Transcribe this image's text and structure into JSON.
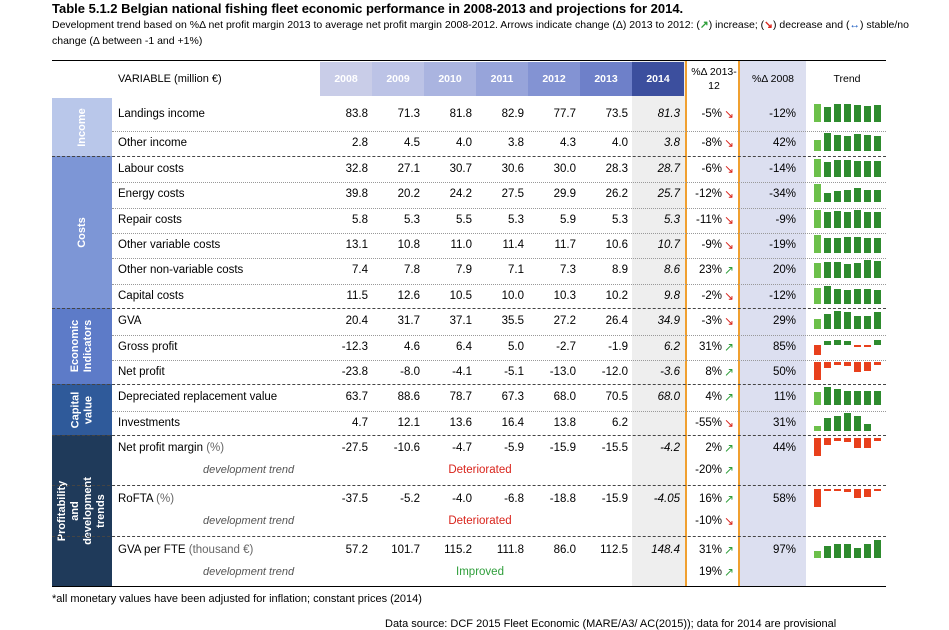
{
  "title": "Table 5.1.2 Belgian national fishing fleet economic performance in 2008-2013 and projections for 2014.",
  "subtitle": {
    "part1": "Development trend based on %Δ net profit margin 2013 to average net profit margin 2008-2012. Arrows indicate change (Δ) 2013 to 2012: (",
    "up_glyph": "↗",
    "part2": ") increase; (",
    "down_glyph": "↘",
    "part3": ") decrease and (",
    "stable_glyph": "↔",
    "part4": ") stable/no change (Δ between -1 and +1%)"
  },
  "header": {
    "variable": "VARIABLE (million €)",
    "years": [
      "2008",
      "2009",
      "2010",
      "2011",
      "2012",
      "2013",
      "2014"
    ],
    "year_colors": [
      "#c9cde8",
      "#bcc3e6",
      "#aab4e0",
      "#97a4da",
      "#8393d3",
      "#6e80c9",
      "#3c4f9e"
    ],
    "pct_2013_12": "%Δ 2013-12",
    "pct_2008": "%Δ 2008",
    "trend": "Trend"
  },
  "sections": [
    {
      "label": "Income",
      "color": "#b9c7ea"
    },
    {
      "label": "Costs",
      "color": "#7d96d6"
    },
    {
      "label": "Economic Indicators",
      "color": "#5d7bc8"
    },
    {
      "label": "Capital value",
      "color": "#2f5a9a"
    },
    {
      "label": "Profitability and development trends",
      "color": "#1f3a5a"
    }
  ],
  "rows": [
    {
      "label": "Landings income",
      "unit": "",
      "values": [
        "83.8",
        "71.3",
        "81.8",
        "82.9",
        "77.7",
        "73.5",
        "81.3"
      ],
      "pct1312": "-5%",
      "arrow": "down",
      "pct08": "-12%"
    },
    {
      "label": "Other income",
      "unit": "",
      "values": [
        "2.8",
        "4.5",
        "4.0",
        "3.8",
        "4.3",
        "4.0",
        "3.8"
      ],
      "pct1312": "-8%",
      "arrow": "down",
      "pct08": "42%"
    },
    {
      "label": "Labour costs",
      "unit": "",
      "values": [
        "32.8",
        "27.1",
        "30.7",
        "30.6",
        "30.0",
        "28.3",
        "28.7"
      ],
      "pct1312": "-6%",
      "arrow": "down",
      "pct08": "-14%"
    },
    {
      "label": "Energy costs",
      "unit": "",
      "values": [
        "39.8",
        "20.2",
        "24.2",
        "27.5",
        "29.9",
        "26.2",
        "25.7"
      ],
      "pct1312": "-12%",
      "arrow": "down",
      "pct08": "-34%"
    },
    {
      "label": "Repair costs",
      "unit": "",
      "values": [
        "5.8",
        "5.3",
        "5.5",
        "5.3",
        "5.9",
        "5.3",
        "5.3"
      ],
      "pct1312": "-11%",
      "arrow": "down",
      "pct08": "-9%"
    },
    {
      "label": "Other variable costs",
      "unit": "",
      "values": [
        "13.1",
        "10.8",
        "11.0",
        "11.4",
        "11.7",
        "10.6",
        "10.7"
      ],
      "pct1312": "-9%",
      "arrow": "down",
      "pct08": "-19%"
    },
    {
      "label": "Other non-variable costs",
      "unit": "",
      "values": [
        "7.4",
        "7.8",
        "7.9",
        "7.1",
        "7.3",
        "8.9",
        "8.6"
      ],
      "pct1312": "23%",
      "arrow": "up",
      "pct08": "20%"
    },
    {
      "label": "Capital costs",
      "unit": "",
      "values": [
        "11.5",
        "12.6",
        "10.5",
        "10.0",
        "10.3",
        "10.2",
        "9.8"
      ],
      "pct1312": "-2%",
      "arrow": "down",
      "pct08": "-12%"
    },
    {
      "label": "GVA",
      "unit": "",
      "values": [
        "20.4",
        "31.7",
        "37.1",
        "35.5",
        "27.2",
        "26.4",
        "34.9"
      ],
      "pct1312": "-3%",
      "arrow": "down",
      "pct08": "29%"
    },
    {
      "label": "Gross profit",
      "unit": "",
      "values": [
        "-12.3",
        "4.6",
        "6.4",
        "5.0",
        "-2.7",
        "-1.9",
        "6.2"
      ],
      "pct1312": "31%",
      "arrow": "up",
      "pct08": "85%"
    },
    {
      "label": "Net profit",
      "unit": "",
      "values": [
        "-23.8",
        "-8.0",
        "-4.1",
        "-5.1",
        "-13.0",
        "-12.0",
        "-3.6"
      ],
      "pct1312": "8%",
      "arrow": "up",
      "pct08": "50%"
    },
    {
      "label": "Depreciated replacement value",
      "unit": "",
      "values": [
        "63.7",
        "88.6",
        "78.7",
        "67.3",
        "68.0",
        "70.5",
        "68.0"
      ],
      "pct1312": "4%",
      "arrow": "up",
      "pct08": "11%"
    },
    {
      "label": "Investments",
      "unit": "",
      "values": [
        "4.7",
        "12.1",
        "13.6",
        "16.4",
        "13.8",
        "6.2",
        ""
      ],
      "pct1312": "-55%",
      "arrow": "down",
      "pct08": "31%"
    },
    {
      "label": "Net profit margin",
      "unit": "(%)",
      "values": [
        "-27.5",
        "-10.6",
        "-4.7",
        "-5.9",
        "-15.9",
        "-15.5",
        "-4.2"
      ],
      "pct1312": "2%",
      "arrow": "up",
      "pct08": "44%"
    },
    {
      "label": "RoFTA",
      "unit": "(%)",
      "values": [
        "-37.5",
        "-5.2",
        "-4.0",
        "-6.8",
        "-18.8",
        "-15.9",
        "-4.05"
      ],
      "pct1312": "16%",
      "arrow": "up",
      "pct08": "58%"
    },
    {
      "label": "GVA per FTE",
      "unit": "(thousand €)",
      "values": [
        "57.2",
        "101.7",
        "115.2",
        "111.8",
        "86.0",
        "112.5",
        "148.4"
      ],
      "pct1312": "31%",
      "arrow": "up",
      "pct08": "97%"
    }
  ],
  "dev_rows": [
    {
      "label": "development trend",
      "trend": "Deteriorated",
      "trend_color": "#d9231b",
      "pct": "-20%",
      "arrow": "up"
    },
    {
      "label": "development trend",
      "trend": "Deteriorated",
      "trend_color": "#d9231b",
      "pct": "-10%",
      "arrow": "down"
    },
    {
      "label": "development trend",
      "trend": "Improved",
      "trend_color": "#2e9e3a",
      "pct": "19%",
      "arrow": "up"
    }
  ],
  "colors": {
    "positive": "#2e8b2e",
    "negative": "#e8401c",
    "pos_light": "#6cc04a"
  },
  "footnote": "*all monetary values have been adjusted for inflation; constant prices (2014)",
  "source": "Data source: DCF 2015 Fleet Economic (MARE/A3/ AC(2015)); data for 2014 are provisional"
}
